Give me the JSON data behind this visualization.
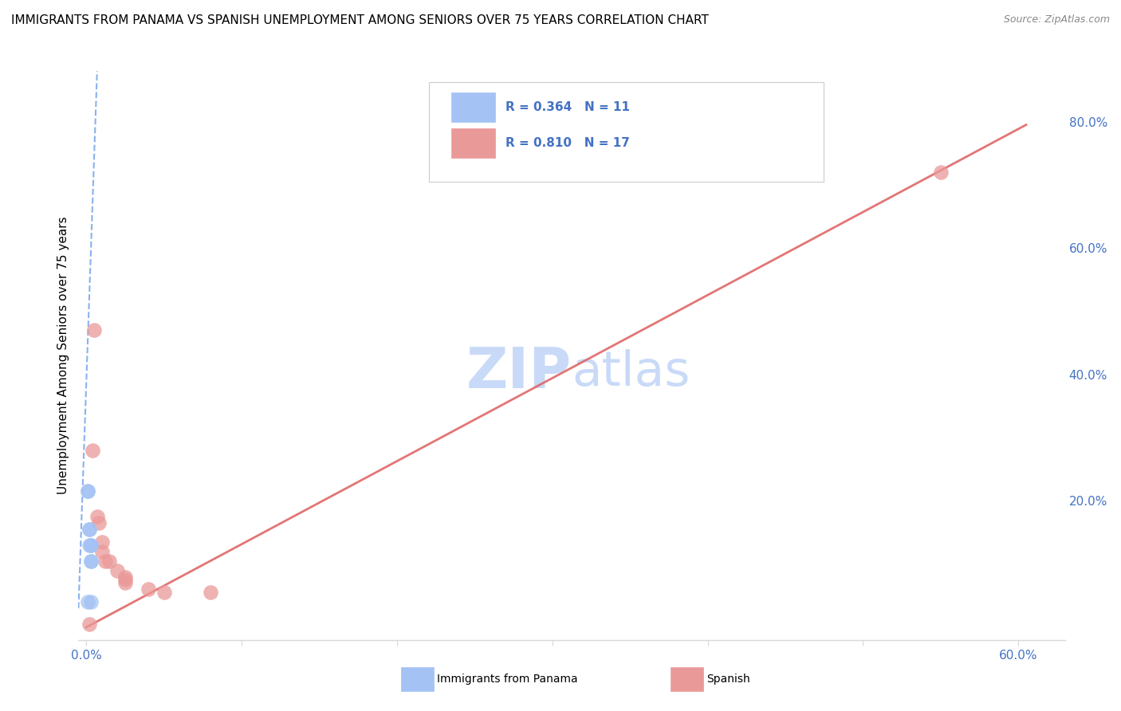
{
  "title": "IMMIGRANTS FROM PANAMA VS SPANISH UNEMPLOYMENT AMONG SENIORS OVER 75 YEARS CORRELATION CHART",
  "source": "Source: ZipAtlas.com",
  "ylabel": "Unemployment Among Seniors over 75 years",
  "xlim": [
    -0.005,
    0.63
  ],
  "ylim": [
    -0.02,
    0.88
  ],
  "xtick_positions": [
    0.0,
    0.1,
    0.2,
    0.3,
    0.4,
    0.5,
    0.6
  ],
  "xtick_labels": [
    "0.0%",
    "",
    "",
    "",
    "",
    "",
    "60.0%"
  ],
  "ytick_positions": [
    0.0,
    0.2,
    0.4,
    0.6,
    0.8
  ],
  "ytick_labels": [
    "",
    "20.0%",
    "40.0%",
    "60.0%",
    "80.0%"
  ],
  "legend_r1": "R = 0.364",
  "legend_n1": "N = 11",
  "legend_r2": "R = 0.810",
  "legend_n2": "N = 17",
  "blue_color": "#a4c2f4",
  "pink_color": "#ea9999",
  "blue_line_color": "#6d9eeb",
  "pink_line_color": "#e06666",
  "watermark_zip": "ZIP",
  "watermark_atlas": "atlas",
  "watermark_color": "#c9daf8",
  "blue_scatter_x": [
    0.001,
    0.001,
    0.002,
    0.002,
    0.002,
    0.003,
    0.003,
    0.003,
    0.003,
    0.003,
    0.001
  ],
  "blue_scatter_y": [
    0.215,
    0.215,
    0.155,
    0.155,
    0.13,
    0.13,
    0.13,
    0.105,
    0.105,
    0.04,
    0.04
  ],
  "pink_scatter_x": [
    0.002,
    0.004,
    0.005,
    0.007,
    0.008,
    0.01,
    0.01,
    0.012,
    0.015,
    0.02,
    0.025,
    0.025,
    0.025,
    0.04,
    0.05,
    0.08,
    0.55
  ],
  "pink_scatter_y": [
    0.005,
    0.28,
    0.47,
    0.175,
    0.165,
    0.135,
    0.12,
    0.105,
    0.105,
    0.09,
    0.08,
    0.075,
    0.07,
    0.06,
    0.055,
    0.055,
    0.72
  ],
  "blue_line_x": [
    -0.005,
    0.007
  ],
  "blue_line_y": [
    0.03,
    0.88
  ],
  "pink_line_x": [
    0.0,
    0.605
  ],
  "pink_line_y": [
    0.0,
    0.795
  ],
  "title_fontsize": 11,
  "source_fontsize": 9,
  "watermark_fontsize": 52,
  "axis_label_color": "#4472c4",
  "grid_color": "#d9d9d9",
  "bottom_legend_label1": "Immigrants from Panama",
  "bottom_legend_label2": "Spanish"
}
